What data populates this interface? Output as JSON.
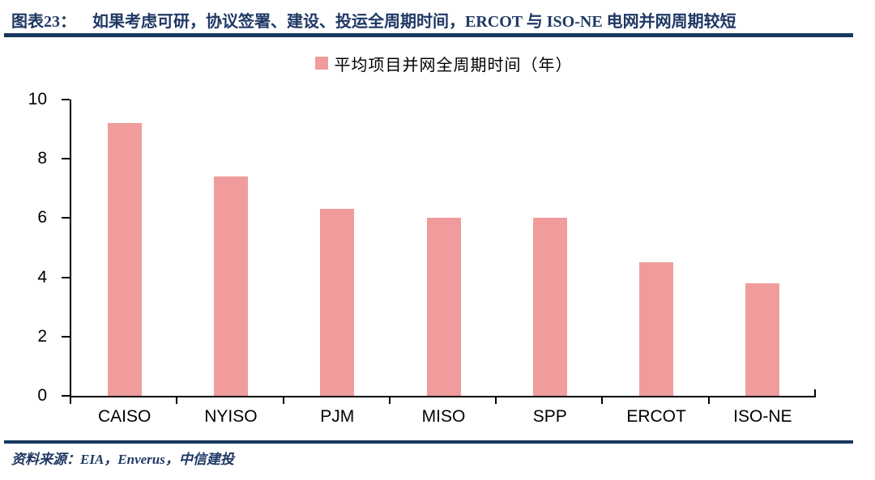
{
  "header": {
    "label": "图表23：",
    "title": "如果考虑可研，协议签署、建设、投运全周期时间，ERCOT 与 ISO-NE 电网并网周期较短"
  },
  "chart_data": {
    "type": "bar",
    "title": "",
    "legend": "平均项目并网全周期时间（年）",
    "legend_position": "top-center",
    "legend_marker": "square",
    "categories": [
      "CAISO",
      "NYISO",
      "PJM",
      "MISO",
      "SPP",
      "ERCOT",
      "ISO-NE"
    ],
    "values": [
      9.2,
      7.4,
      6.3,
      6.0,
      6.0,
      4.5,
      3.8
    ],
    "xlabel": "",
    "ylabel": "",
    "ylim": [
      0,
      10
    ],
    "ytick_step": 2,
    "yticks": [
      0,
      2,
      4,
      6,
      8,
      10
    ],
    "grid": false,
    "bar_color": "#F09C9C"
  },
  "footer": {
    "source": "资料来源：EIA，Enverus，中信建投"
  },
  "colors": {
    "title": "#1F3864",
    "rule": "#17375E",
    "bar": "#F09C9C",
    "axis": "#000000"
  }
}
